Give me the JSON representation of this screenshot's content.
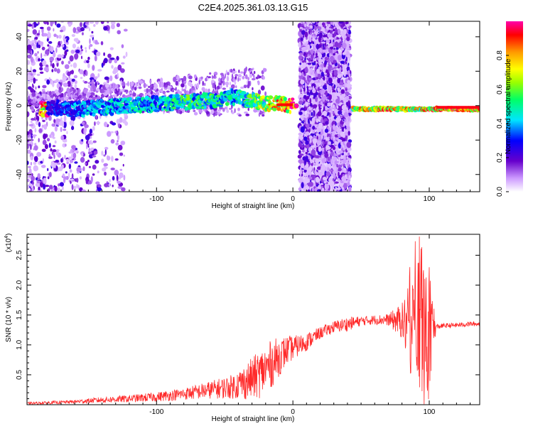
{
  "title": "C2E4.2025.361.03.13.G15",
  "chart_data": [
    {
      "type": "heatmap",
      "xlabel": "Height of straight line (km)",
      "ylabel": "Frequency (Hz)",
      "xlim": [
        -195,
        137
      ],
      "ylim": [
        -50,
        49
      ],
      "xticks": [
        -100,
        0,
        100
      ],
      "yticks": [
        -40,
        -20,
        0,
        20,
        40
      ],
      "colorbar": {
        "label": "Normalized spectral amplitude",
        "range": [
          0.0,
          1.0
        ],
        "ticks": [
          "0.0",
          "0.2",
          "0.4",
          "0.6",
          "0.8"
        ],
        "colors": [
          "#ffffff",
          "#cc99ff",
          "#6600cc",
          "#0000ff",
          "#00e5ff",
          "#00ff66",
          "#99ff00",
          "#ffff00",
          "#ff9900",
          "#ff0000",
          "#ff00aa"
        ]
      },
      "noise_regions_km": [
        [
          -195,
          -122
        ],
        [
          5,
          42
        ]
      ],
      "signal_track": [
        {
          "x": -180,
          "y": -1,
          "amp": 0.3
        },
        {
          "x": -160,
          "y": -2,
          "amp": 0.4
        },
        {
          "x": -140,
          "y": -1,
          "amp": 0.45
        },
        {
          "x": -120,
          "y": 0,
          "amp": 0.45
        },
        {
          "x": -100,
          "y": 1,
          "amp": 0.5
        },
        {
          "x": -80,
          "y": 2,
          "amp": 0.55
        },
        {
          "x": -60,
          "y": 3,
          "amp": 0.55
        },
        {
          "x": -45,
          "y": 5,
          "amp": 0.5
        },
        {
          "x": -30,
          "y": 3,
          "amp": 0.6
        },
        {
          "x": -20,
          "y": 1,
          "amp": 0.7
        },
        {
          "x": -10,
          "y": 1,
          "amp": 0.9
        },
        {
          "x": 0,
          "y": 0,
          "amp": 0.95
        },
        {
          "x": 45,
          "y": -2,
          "amp": 0.8
        },
        {
          "x": 70,
          "y": -2,
          "amp": 0.85
        },
        {
          "x": 90,
          "y": -2,
          "amp": 0.8
        },
        {
          "x": 100,
          "y": -2,
          "amp": 0.9
        },
        {
          "x": 137,
          "y": -2,
          "amp": 1.0
        }
      ]
    },
    {
      "type": "line",
      "xlabel": "Height of straight line (km)",
      "ylabel": "SNR (10 * v/v)",
      "yscale_label": "(x10",
      "yscale_exp": "4",
      "xlim": [
        -195,
        137
      ],
      "ylim": [
        0,
        2.85
      ],
      "xticks": [
        -100,
        0,
        100
      ],
      "yticks": [
        0.5,
        1.0,
        1.5,
        2.0,
        2.5
      ],
      "ytick_labels": [
        "0.5",
        "1.0",
        "1.5",
        "2.0",
        "2.5"
      ],
      "line_color": "#ff2a2a",
      "series_envelope": {
        "x": [
          -195,
          -160,
          -140,
          -120,
          -100,
          -80,
          -60,
          -45,
          -35,
          -25,
          -15,
          -5,
          0,
          10,
          20,
          30,
          40,
          50,
          60,
          70,
          80,
          85,
          90,
          95,
          100,
          105,
          110,
          120,
          130,
          137
        ],
        "mean": [
          0.02,
          0.05,
          0.08,
          0.1,
          0.13,
          0.18,
          0.25,
          0.3,
          0.38,
          0.5,
          0.7,
          0.9,
          0.95,
          1.05,
          1.2,
          1.3,
          1.35,
          1.4,
          1.42,
          1.42,
          1.4,
          1.3,
          1.2,
          1.1,
          1.05,
          1.3,
          1.32,
          1.33,
          1.35,
          1.35
        ],
        "spread": [
          0.02,
          0.03,
          0.05,
          0.06,
          0.08,
          0.1,
          0.15,
          0.2,
          0.3,
          0.4,
          0.4,
          0.25,
          0.2,
          0.15,
          0.1,
          0.1,
          0.12,
          0.08,
          0.08,
          0.1,
          0.3,
          0.7,
          1.0,
          1.2,
          1.0,
          0.05,
          0.04,
          0.04,
          0.04,
          0.04
        ]
      }
    }
  ]
}
